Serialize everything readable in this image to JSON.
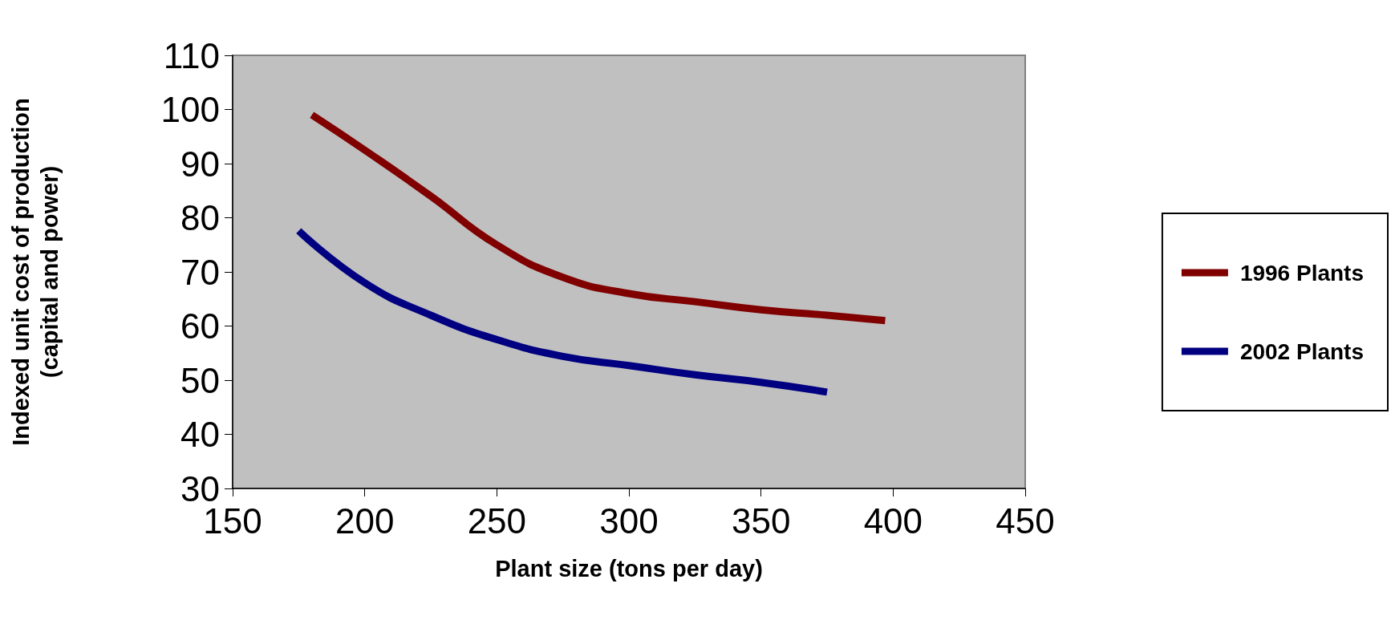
{
  "chart_data": {
    "type": "line",
    "xlabel": "Plant size (tons per day)",
    "ylabel": "Indexed unit cost of production\n(capital and power)",
    "xlim": [
      150,
      450
    ],
    "xticks": [
      150,
      200,
      250,
      300,
      350,
      400,
      450
    ],
    "ylim": [
      30,
      110
    ],
    "yticks": [
      30,
      40,
      50,
      60,
      70,
      80,
      90,
      100,
      110
    ],
    "grid": false,
    "legend": "right",
    "marker": "none",
    "line_style": "solid",
    "series": [
      {
        "name": "1996 Plants",
        "color": "#800000",
        "x": [
          180,
          200,
          225,
          250,
          275,
          300,
          325,
          350,
          375,
          397
        ],
        "values": [
          99,
          92.5,
          84,
          75,
          69,
          66,
          64.5,
          63,
          62,
          61
        ]
      },
      {
        "name": "2002 Plants",
        "color": "#000080",
        "x": [
          175,
          200,
          225,
          250,
          275,
          300,
          325,
          350,
          375
        ],
        "values": [
          77.6,
          68,
          62,
          57.5,
          54.4,
          52.7,
          51,
          49.6,
          47.8
        ]
      }
    ]
  }
}
